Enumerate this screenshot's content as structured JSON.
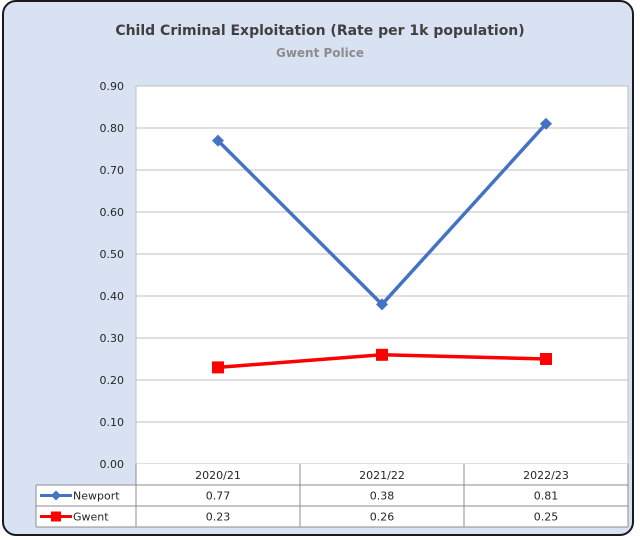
{
  "chart_data": {
    "type": "line",
    "title": "Child Criminal Exploitation (Rate per 1k population)",
    "subtitle": "Gwent Police",
    "categories": [
      "2020/21",
      "2021/22",
      "2022/23"
    ],
    "ylim": [
      0,
      0.9
    ],
    "yticks": [
      "0.00",
      "0.10",
      "0.20",
      "0.30",
      "0.40",
      "0.50",
      "0.60",
      "0.70",
      "0.80",
      "0.90"
    ],
    "grid": true,
    "legend": "data-table",
    "series": [
      {
        "name": "Newport",
        "values": [
          0.77,
          0.38,
          0.81
        ],
        "labels": [
          "0.77",
          "0.38",
          "0.81"
        ],
        "color": "#4472c4",
        "marker": "diamond"
      },
      {
        "name": "Gwent",
        "values": [
          0.23,
          0.26,
          0.25
        ],
        "labels": [
          "0.23",
          "0.26",
          "0.25"
        ],
        "color": "#ff0000",
        "marker": "square"
      }
    ]
  }
}
